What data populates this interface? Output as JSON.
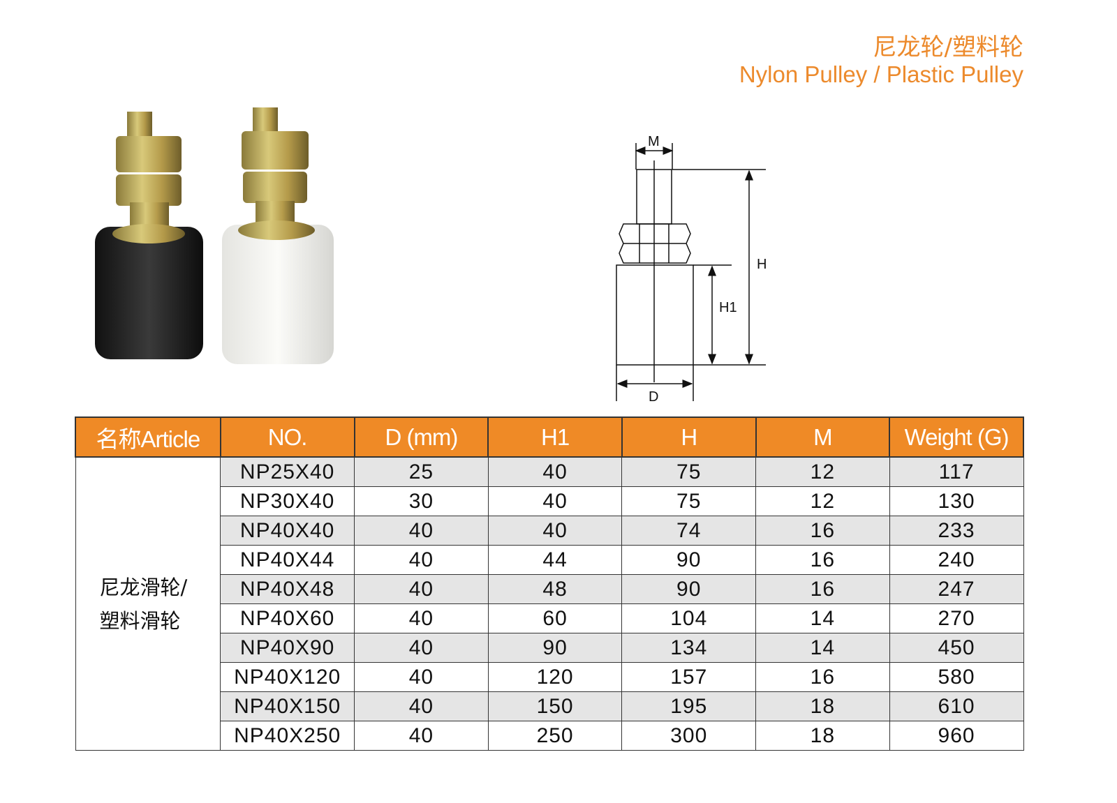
{
  "header": {
    "title_cn": "尼龙轮/塑料轮",
    "title_en": "Nylon Pulley / Plastic Pulley"
  },
  "colors": {
    "accent": "#ef8a26",
    "row_alt": "#e5e5e5"
  },
  "photos": [
    {
      "name": "black-nylon-pulley"
    },
    {
      "name": "white-plastic-pulley"
    }
  ],
  "diagram": {
    "labels": {
      "m": "M",
      "h": "H",
      "h1": "H1",
      "d": "D"
    }
  },
  "table": {
    "headers": [
      "名称Article",
      "NO.",
      "D (mm)",
      "H1",
      "H",
      "M",
      "Weight (G)"
    ],
    "article_line1": "尼龙滑轮/",
    "article_line2": "塑料滑轮",
    "rows": [
      [
        "NP25X40",
        "25",
        "40",
        "75",
        "12",
        "117"
      ],
      [
        "NP30X40",
        "30",
        "40",
        "75",
        "12",
        "130"
      ],
      [
        "NP40X40",
        "40",
        "40",
        "74",
        "16",
        "233"
      ],
      [
        "NP40X44",
        "40",
        "44",
        "90",
        "16",
        "240"
      ],
      [
        "NP40X48",
        "40",
        "48",
        "90",
        "16",
        "247"
      ],
      [
        "NP40X60",
        "40",
        "60",
        "104",
        "14",
        "270"
      ],
      [
        "NP40X90",
        "40",
        "90",
        "134",
        "14",
        "450"
      ],
      [
        "NP40X120",
        "40",
        "120",
        "157",
        "16",
        "580"
      ],
      [
        "NP40X150",
        "40",
        "150",
        "195",
        "18",
        "610"
      ],
      [
        "NP40X250",
        "40",
        "250",
        "300",
        "18",
        "960"
      ]
    ]
  }
}
